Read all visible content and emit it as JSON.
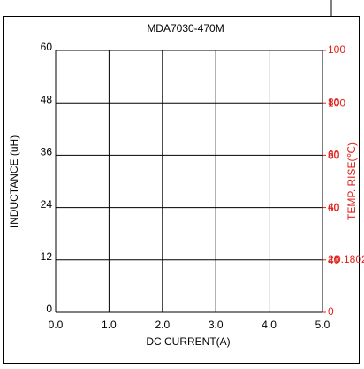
{
  "chart_data": {
    "type": "line",
    "title": "MDA7030-470M",
    "x_label": "DC CURRENT(A)",
    "y_label": "INDUCTANCE (uH)",
    "y2_label": "TEMP. RISE(℃)",
    "series": [],
    "xlim": [
      0,
      5
    ],
    "xticks": [
      {
        "value": 0,
        "label": "0.0"
      },
      {
        "value": 1,
        "label": "1.0"
      },
      {
        "value": 2,
        "label": "2.0"
      },
      {
        "value": 3,
        "label": "3.0"
      },
      {
        "value": 4,
        "label": "4.0"
      },
      {
        "value": 5,
        "label": "5.0"
      }
    ],
    "ylim": [
      0,
      60
    ],
    "yticks": [
      0,
      12,
      24,
      36,
      48,
      60
    ],
    "y2lim": [
      0,
      100
    ],
    "y2ticks": [
      0,
      20,
      40,
      60,
      80,
      100
    ],
    "y3lim": [
      20,
      120
    ],
    "y3ticks": [
      40,
      60,
      80,
      100
    ],
    "annotation": "0.1802",
    "y2_color": "#e0221b",
    "grid": true
  }
}
